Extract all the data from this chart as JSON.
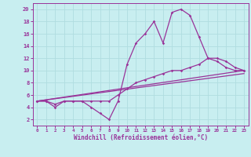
{
  "xlabel": "Windchill (Refroidissement éolien,°C)",
  "bg_color": "#c8eef0",
  "line_color": "#993399",
  "grid_color": "#b0dde0",
  "xlim": [
    -0.5,
    23.5
  ],
  "ylim": [
    1,
    21
  ],
  "xticks": [
    0,
    1,
    2,
    3,
    4,
    5,
    6,
    7,
    8,
    9,
    10,
    11,
    12,
    13,
    14,
    15,
    16,
    17,
    18,
    19,
    20,
    21,
    22,
    23
  ],
  "yticks": [
    2,
    4,
    6,
    8,
    10,
    12,
    14,
    16,
    18,
    20
  ],
  "series1_x": [
    0,
    1,
    2,
    3,
    4,
    5,
    6,
    7,
    8,
    9,
    10,
    11,
    12,
    13,
    14,
    15,
    16,
    17,
    18,
    19,
    20,
    21,
    22,
    23
  ],
  "series1_y": [
    5,
    5,
    4,
    5,
    5,
    5,
    4,
    3,
    2,
    5,
    11,
    14.5,
    16,
    18,
    14.5,
    19.5,
    20,
    19,
    15.5,
    12,
    11.5,
    10.5,
    10,
    10
  ],
  "series2_x": [
    0,
    23
  ],
  "series2_y": [
    5,
    10
  ],
  "series3_x": [
    0,
    23
  ],
  "series3_y": [
    5,
    9.5
  ],
  "series4_x": [
    0,
    1,
    2,
    3,
    4,
    5,
    6,
    7,
    8,
    9,
    10,
    11,
    12,
    13,
    14,
    15,
    16,
    17,
    18,
    19,
    20,
    21,
    22,
    23
  ],
  "series4_y": [
    5,
    5,
    4.5,
    5,
    5,
    5,
    5,
    5,
    5,
    6,
    7,
    8,
    8.5,
    9,
    9.5,
    10,
    10,
    10.5,
    11,
    12,
    12,
    11.5,
    10.5,
    10
  ]
}
